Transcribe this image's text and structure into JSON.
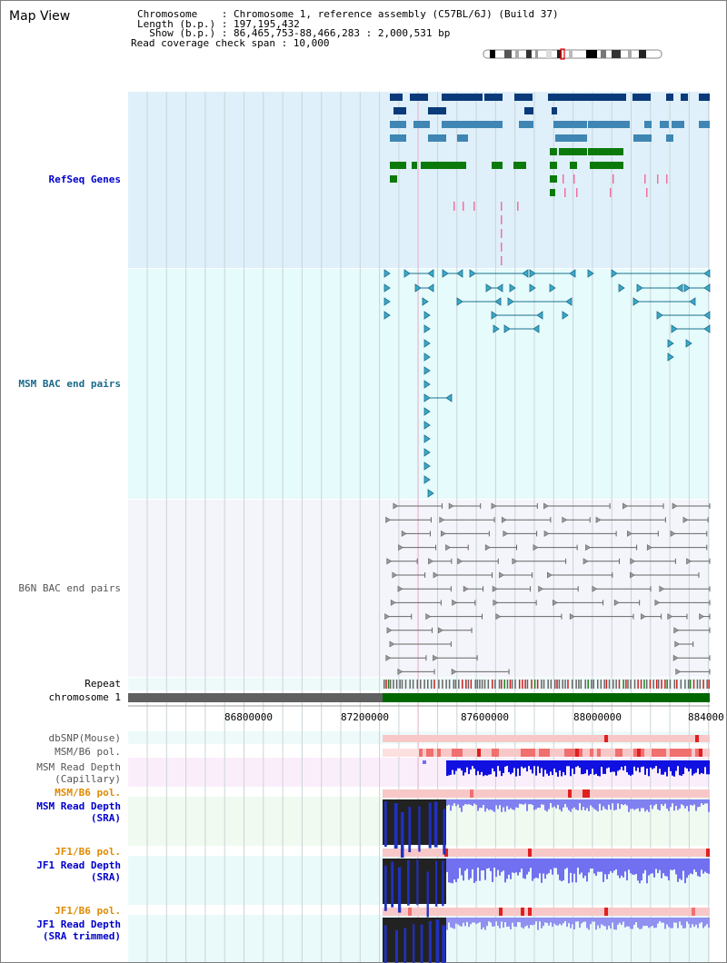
{
  "title": "Map View",
  "info": {
    "chromosome_line": "Chromosome    : Chromosome 1, reference assembly (C57BL/6J) (Build 37)",
    "length_line": "Length (b.p.) : 197,195,432",
    "show_line": "  Show (b.p.) : 86,465,753-88,466,283 : 2,000,531 bp",
    "coverage_line": "Read coverage check span : 10,000"
  },
  "tracks": {
    "refseq": "RefSeq Genes",
    "msm_bac": "MSM BAC end pairs",
    "b6n_bac": "B6N BAC end pairs",
    "repeat": "Repeat",
    "chromosome": "chromosome 1",
    "dbsnp": "dbSNP(Mouse)",
    "msm_b6_pol_1": "MSM/B6 pol.",
    "msm_depth_cap_1": "MSM Read Depth",
    "msm_depth_cap_2": "(Capillary)",
    "msm_b6_pol_2": "MSM/B6 pol.",
    "msm_depth_sra_1": "MSM Read Depth",
    "msm_depth_sra_2": "(SRA)",
    "jf1_pol_1": "JF1/B6 pol.",
    "jf1_depth_sra_1": "JF1 Read Depth",
    "jf1_depth_sra_2": "(SRA)",
    "jf1_pol_2": "JF1/B6 pol.",
    "jf1_depth_trim_1": "JF1 Read Depth",
    "jf1_depth_trim_2": "(SRA trimmed)"
  },
  "axis": {
    "ticks": [
      "86800000",
      "87200000",
      "87600000",
      "88000000",
      "884000"
    ]
  },
  "colors": {
    "refseq_bg": "#dff0fa",
    "bac_bg": "#e6fbfb",
    "b6n_bg": "#f4f4fb",
    "gene_dark": "#0b3a7a",
    "gene_mid": "#3f86b4",
    "gene_green": "#0b7a0b",
    "bac_teal": "#1a7090",
    "label_blue": "#0000cc",
    "label_orange": "#e08a00",
    "label_teal": "#1a6a8a",
    "label_grey": "#555555",
    "chrom_green": "#006600",
    "chrom_grey": "#606060",
    "depth_blue": "#2020e8",
    "depth_light": "#7070f0"
  }
}
